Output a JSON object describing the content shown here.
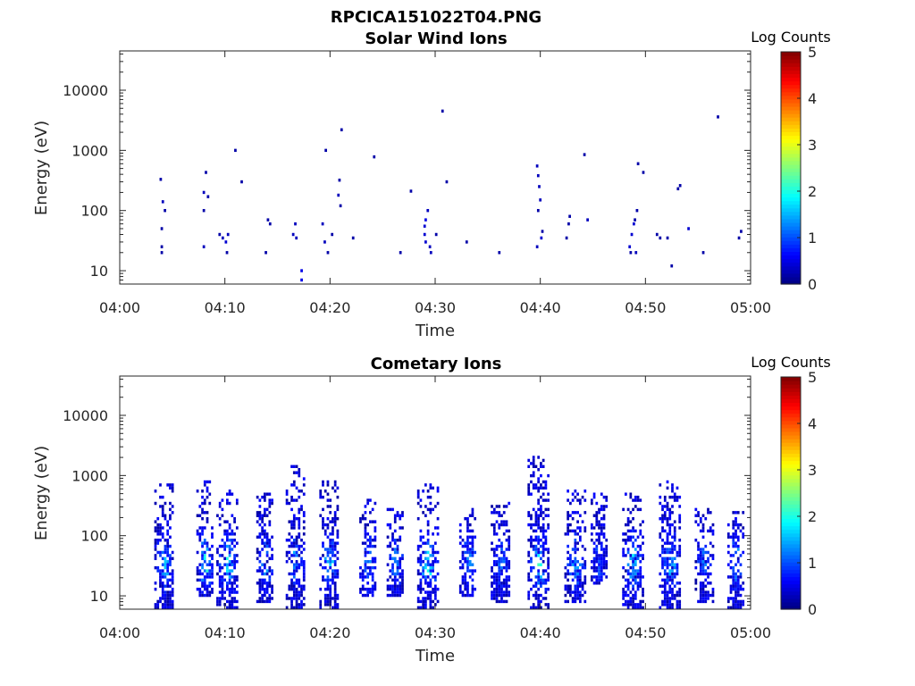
{
  "figure_title": "RPCICA151022T04.PNG",
  "colors": {
    "axis": "#262626",
    "background": "#ffffff"
  },
  "chart_data": [
    {
      "type": "heatmap",
      "title": "Solar Wind Ions",
      "xlabel": "Time",
      "ylabel": "Energy (eV)",
      "xlim": [
        "04:00",
        "05:00"
      ],
      "ylim": [
        6,
        45000
      ],
      "y_scale": "log",
      "x_ticks": [
        "04:00",
        "04:10",
        "04:20",
        "04:30",
        "04:40",
        "04:50",
        "05:00"
      ],
      "y_ticks": [
        10,
        100,
        1000,
        10000
      ],
      "y_tick_labels": [
        "10",
        "100",
        "1000",
        "10000"
      ],
      "colorbar": {
        "label": "Log Counts",
        "range": [
          0,
          5
        ],
        "ticks": [
          "0",
          "1",
          "2",
          "3",
          "4",
          "5"
        ],
        "colormap": "jet"
      },
      "cells": [
        [
          4.0,
          25,
          0.2
        ],
        [
          4.0,
          20,
          0.2
        ],
        [
          4.0,
          50,
          0.2
        ],
        [
          4.1,
          140,
          0.3
        ],
        [
          4.3,
          100,
          0.2
        ],
        [
          3.9,
          330,
          0.2
        ],
        [
          8.0,
          25,
          0.3
        ],
        [
          8.0,
          100,
          0.2
        ],
        [
          8.0,
          200,
          0.3
        ],
        [
          8.2,
          430,
          0.2
        ],
        [
          8.4,
          170,
          0.2
        ],
        [
          9.8,
          35,
          0.3
        ],
        [
          10.1,
          30,
          0.4
        ],
        [
          10.3,
          40,
          0.3
        ],
        [
          10.2,
          20,
          0.2
        ],
        [
          9.5,
          40,
          0.2
        ],
        [
          11.6,
          300,
          0.2
        ],
        [
          11.0,
          1000,
          0.2
        ],
        [
          13.9,
          20,
          0.2
        ],
        [
          14.1,
          70,
          0.2
        ],
        [
          14.3,
          60,
          0.2
        ],
        [
          16.5,
          40,
          0.3
        ],
        [
          16.7,
          60,
          0.3
        ],
        [
          16.8,
          35,
          0.3
        ],
        [
          17.3,
          10,
          0.5
        ],
        [
          17.3,
          7,
          0.5
        ],
        [
          19.3,
          60,
          0.3
        ],
        [
          19.5,
          30,
          0.3
        ],
        [
          19.8,
          20,
          0.2
        ],
        [
          20.2,
          40,
          0.2
        ],
        [
          19.6,
          1000,
          0.2
        ],
        [
          20.8,
          180,
          0.3
        ],
        [
          20.9,
          320,
          0.2
        ],
        [
          21.0,
          120,
          0.2
        ],
        [
          21.1,
          2200,
          0.2
        ],
        [
          22.2,
          35,
          0.2
        ],
        [
          24.2,
          780,
          0.2
        ],
        [
          26.7,
          20,
          0.2
        ],
        [
          27.7,
          210,
          0.2
        ],
        [
          29.0,
          55,
          0.4
        ],
        [
          29.1,
          70,
          0.5
        ],
        [
          29.0,
          40,
          0.4
        ],
        [
          29.3,
          100,
          0.3
        ],
        [
          29.5,
          25,
          0.3
        ],
        [
          29.6,
          20,
          0.3
        ],
        [
          29.1,
          30,
          0.4
        ],
        [
          30.1,
          40,
          0.2
        ],
        [
          30.7,
          4500,
          0.2
        ],
        [
          31.1,
          300,
          0.2
        ],
        [
          33.0,
          30,
          0.2
        ],
        [
          36.1,
          20,
          0.2
        ],
        [
          39.7,
          550,
          0.3
        ],
        [
          39.8,
          380,
          0.3
        ],
        [
          39.9,
          250,
          0.3
        ],
        [
          40.0,
          150,
          0.3
        ],
        [
          39.8,
          100,
          0.2
        ],
        [
          39.7,
          25,
          0.3
        ],
        [
          40.1,
          35,
          0.4
        ],
        [
          40.2,
          45,
          0.2
        ],
        [
          42.5,
          35,
          0.2
        ],
        [
          42.7,
          60,
          0.2
        ],
        [
          42.8,
          80,
          0.2
        ],
        [
          44.2,
          850,
          0.2
        ],
        [
          44.5,
          70,
          0.3
        ],
        [
          48.5,
          25,
          0.4
        ],
        [
          48.7,
          40,
          0.4
        ],
        [
          48.9,
          60,
          0.4
        ],
        [
          49.1,
          20,
          0.3
        ],
        [
          48.6,
          20,
          0.2
        ],
        [
          49.0,
          70,
          0.2
        ],
        [
          49.2,
          100,
          0.2
        ],
        [
          49.3,
          600,
          0.2
        ],
        [
          49.8,
          430,
          0.2
        ],
        [
          51.1,
          40,
          0.2
        ],
        [
          51.4,
          35,
          0.2
        ],
        [
          52.1,
          35,
          0.2
        ],
        [
          52.5,
          12,
          0.2
        ],
        [
          53.1,
          230,
          0.2
        ],
        [
          53.3,
          260,
          0.2
        ],
        [
          54.1,
          50,
          0.4
        ],
        [
          55.5,
          20,
          0.2
        ],
        [
          56.9,
          3600,
          0.2
        ],
        [
          58.9,
          35,
          0.2
        ],
        [
          59.1,
          45,
          0.2
        ]
      ]
    },
    {
      "type": "heatmap",
      "title": "Cometary Ions",
      "xlabel": "Time",
      "ylabel": "Energy (eV)",
      "xlim": [
        "04:00",
        "05:00"
      ],
      "ylim": [
        6,
        45000
      ],
      "y_scale": "log",
      "x_ticks": [
        "04:00",
        "04:10",
        "04:20",
        "04:30",
        "04:40",
        "04:50",
        "05:00"
      ],
      "y_ticks": [
        10,
        100,
        1000,
        10000
      ],
      "y_tick_labels": [
        "10",
        "100",
        "1000",
        "10000"
      ],
      "colorbar": {
        "label": "Log Counts",
        "range": [
          0,
          5
        ],
        "ticks": [
          "0",
          "1",
          "2",
          "3",
          "4",
          "5"
        ],
        "colormap": "jet"
      },
      "bursts": [
        {
          "t": 4.3,
          "spread": 0.9,
          "e_min": 6,
          "e_max": 800,
          "peak": 1.6
        },
        {
          "t": 8.2,
          "spread": 0.8,
          "e_min": 10,
          "e_max": 850,
          "peak": 2.3
        },
        {
          "t": 10.3,
          "spread": 1.0,
          "e_min": 6,
          "e_max": 600,
          "peak": 2.0
        },
        {
          "t": 13.9,
          "spread": 0.8,
          "e_min": 8,
          "e_max": 500,
          "peak": 1.4
        },
        {
          "t": 16.8,
          "spread": 0.9,
          "e_min": 6,
          "e_max": 1500,
          "peak": 1.5
        },
        {
          "t": 20.0,
          "spread": 0.9,
          "e_min": 6,
          "e_max": 800,
          "peak": 1.7
        },
        {
          "t": 23.7,
          "spread": 0.8,
          "e_min": 10,
          "e_max": 400,
          "peak": 1.3
        },
        {
          "t": 26.3,
          "spread": 0.8,
          "e_min": 10,
          "e_max": 300,
          "peak": 1.2
        },
        {
          "t": 29.4,
          "spread": 1.0,
          "e_min": 6,
          "e_max": 700,
          "peak": 2.2
        },
        {
          "t": 33.2,
          "spread": 0.8,
          "e_min": 10,
          "e_max": 300,
          "peak": 1.3
        },
        {
          "t": 36.3,
          "spread": 0.9,
          "e_min": 8,
          "e_max": 350,
          "peak": 1.2
        },
        {
          "t": 39.9,
          "spread": 1.0,
          "e_min": 6,
          "e_max": 2200,
          "peak": 2.2
        },
        {
          "t": 43.4,
          "spread": 1.0,
          "e_min": 8,
          "e_max": 600,
          "peak": 1.4
        },
        {
          "t": 45.6,
          "spread": 0.7,
          "e_min": 15,
          "e_max": 600,
          "peak": 1.0
        },
        {
          "t": 48.9,
          "spread": 1.0,
          "e_min": 6,
          "e_max": 500,
          "peak": 1.8
        },
        {
          "t": 52.4,
          "spread": 1.0,
          "e_min": 6,
          "e_max": 850,
          "peak": 1.6
        },
        {
          "t": 55.7,
          "spread": 0.9,
          "e_min": 8,
          "e_max": 300,
          "peak": 1.3
        },
        {
          "t": 58.7,
          "spread": 0.8,
          "e_min": 6,
          "e_max": 250,
          "peak": 1.6
        }
      ]
    }
  ]
}
